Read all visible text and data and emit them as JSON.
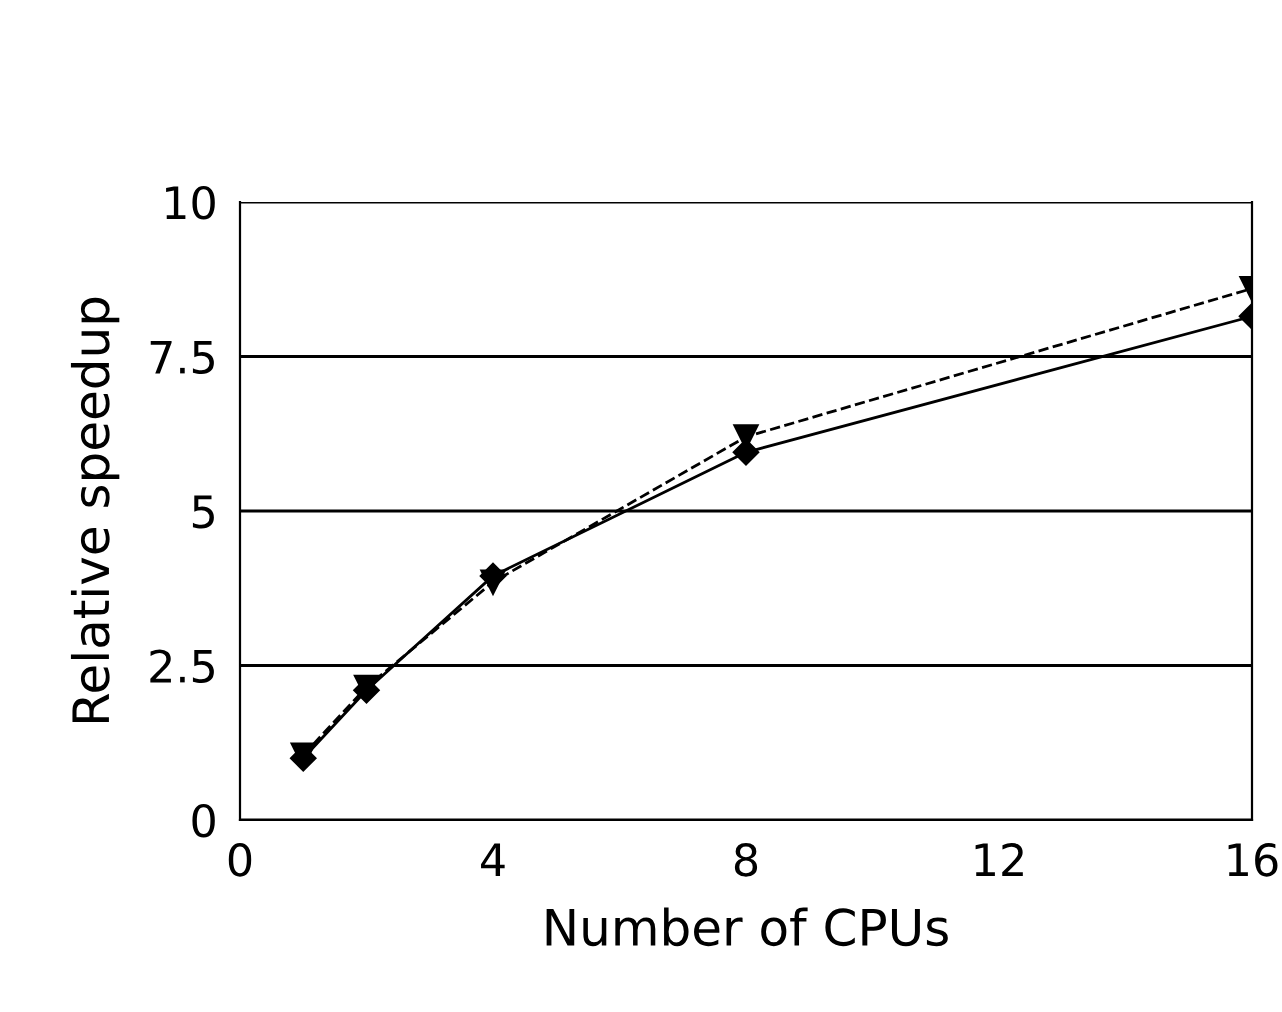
{
  "chart_data": {
    "type": "line",
    "xlabel": "Number of CPUs",
    "ylabel": "Relative speedup",
    "x": [
      1,
      2,
      4,
      8,
      16
    ],
    "series": [
      {
        "color": "#000000",
        "marker": "diamond",
        "line_style": "solid",
        "values": [
          1.0,
          2.1,
          3.95,
          5.95,
          8.15
        ]
      },
      {
        "color": "#000000",
        "marker": "triangle",
        "line_style": "dashed",
        "values": [
          1.05,
          2.15,
          3.85,
          6.2,
          8.6
        ]
      }
    ],
    "xlim": [
      0,
      16
    ],
    "xticks": [
      0,
      4,
      8,
      12,
      16
    ],
    "ylim": [
      0,
      10
    ],
    "yticks": [
      0,
      {
        "value": 2.5,
        "label": "2.5"
      },
      5,
      {
        "value": 7.5,
        "label": "7.5"
      },
      10
    ],
    "grid": "y"
  }
}
